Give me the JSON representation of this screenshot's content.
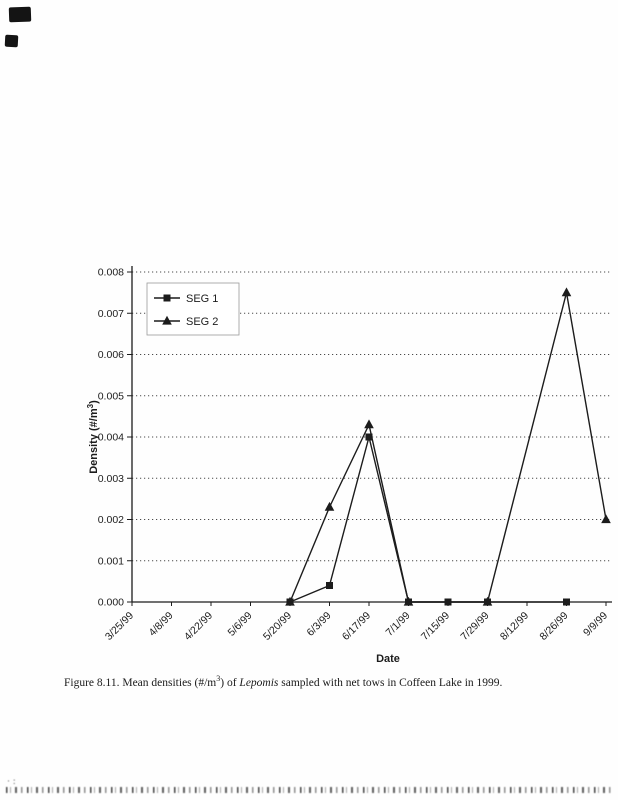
{
  "caption": {
    "prefix": "Figure 8.11.  Mean densities (#/m",
    "sup": "3",
    "after_sup": ") of ",
    "species": "Lepomis",
    "suffix": " sampled with net tows in Coffeen Lake in 1999."
  },
  "chart_data": {
    "type": "line",
    "title": "",
    "xlabel": "Date",
    "ylabel": "Density (#/m3)",
    "ylabel_parts": {
      "pre": "Density (#/m",
      "sup": "3",
      "post": ")"
    },
    "ylim": [
      0,
      0.008
    ],
    "ytick_step": 0.001,
    "ytick_format_decimals": 3,
    "grid": "horizontal-dotted",
    "legend_position": "top-left",
    "x_labels": [
      "3/25/99",
      "4/8/99",
      "4/22/99",
      "5/6/99",
      "5/20/99",
      "6/3/99",
      "6/17/99",
      "7/1/99",
      "7/15/99",
      "7/29/99",
      "8/12/99",
      "8/26/99",
      "9/9/99"
    ],
    "series": [
      {
        "name": "SEG 1",
        "marker": "square",
        "color": "#1c1c1c",
        "points": [
          {
            "x": "5/20/99",
            "y": 0.0
          },
          {
            "x": "6/3/99",
            "y": 0.0004
          },
          {
            "x": "6/17/99",
            "y": 0.004
          },
          {
            "x": "7/1/99",
            "y": 0.0
          },
          {
            "x": "7/15/99",
            "y": 0.0
          },
          {
            "x": "7/29/99",
            "y": 0.0
          },
          {
            "x": "8/26/99",
            "y": 0.0
          }
        ]
      },
      {
        "name": "SEG 2",
        "marker": "triangle",
        "color": "#1c1c1c",
        "points": [
          {
            "x": "5/20/99",
            "y": 0.0
          },
          {
            "x": "6/3/99",
            "y": 0.0023
          },
          {
            "x": "6/17/99",
            "y": 0.0043
          },
          {
            "x": "7/1/99",
            "y": 0.0
          },
          {
            "x": "7/29/99",
            "y": 0.0
          },
          {
            "x": "8/26/99",
            "y": 0.0075
          },
          {
            "x": "9/9/99",
            "y": 0.002
          }
        ]
      }
    ]
  }
}
